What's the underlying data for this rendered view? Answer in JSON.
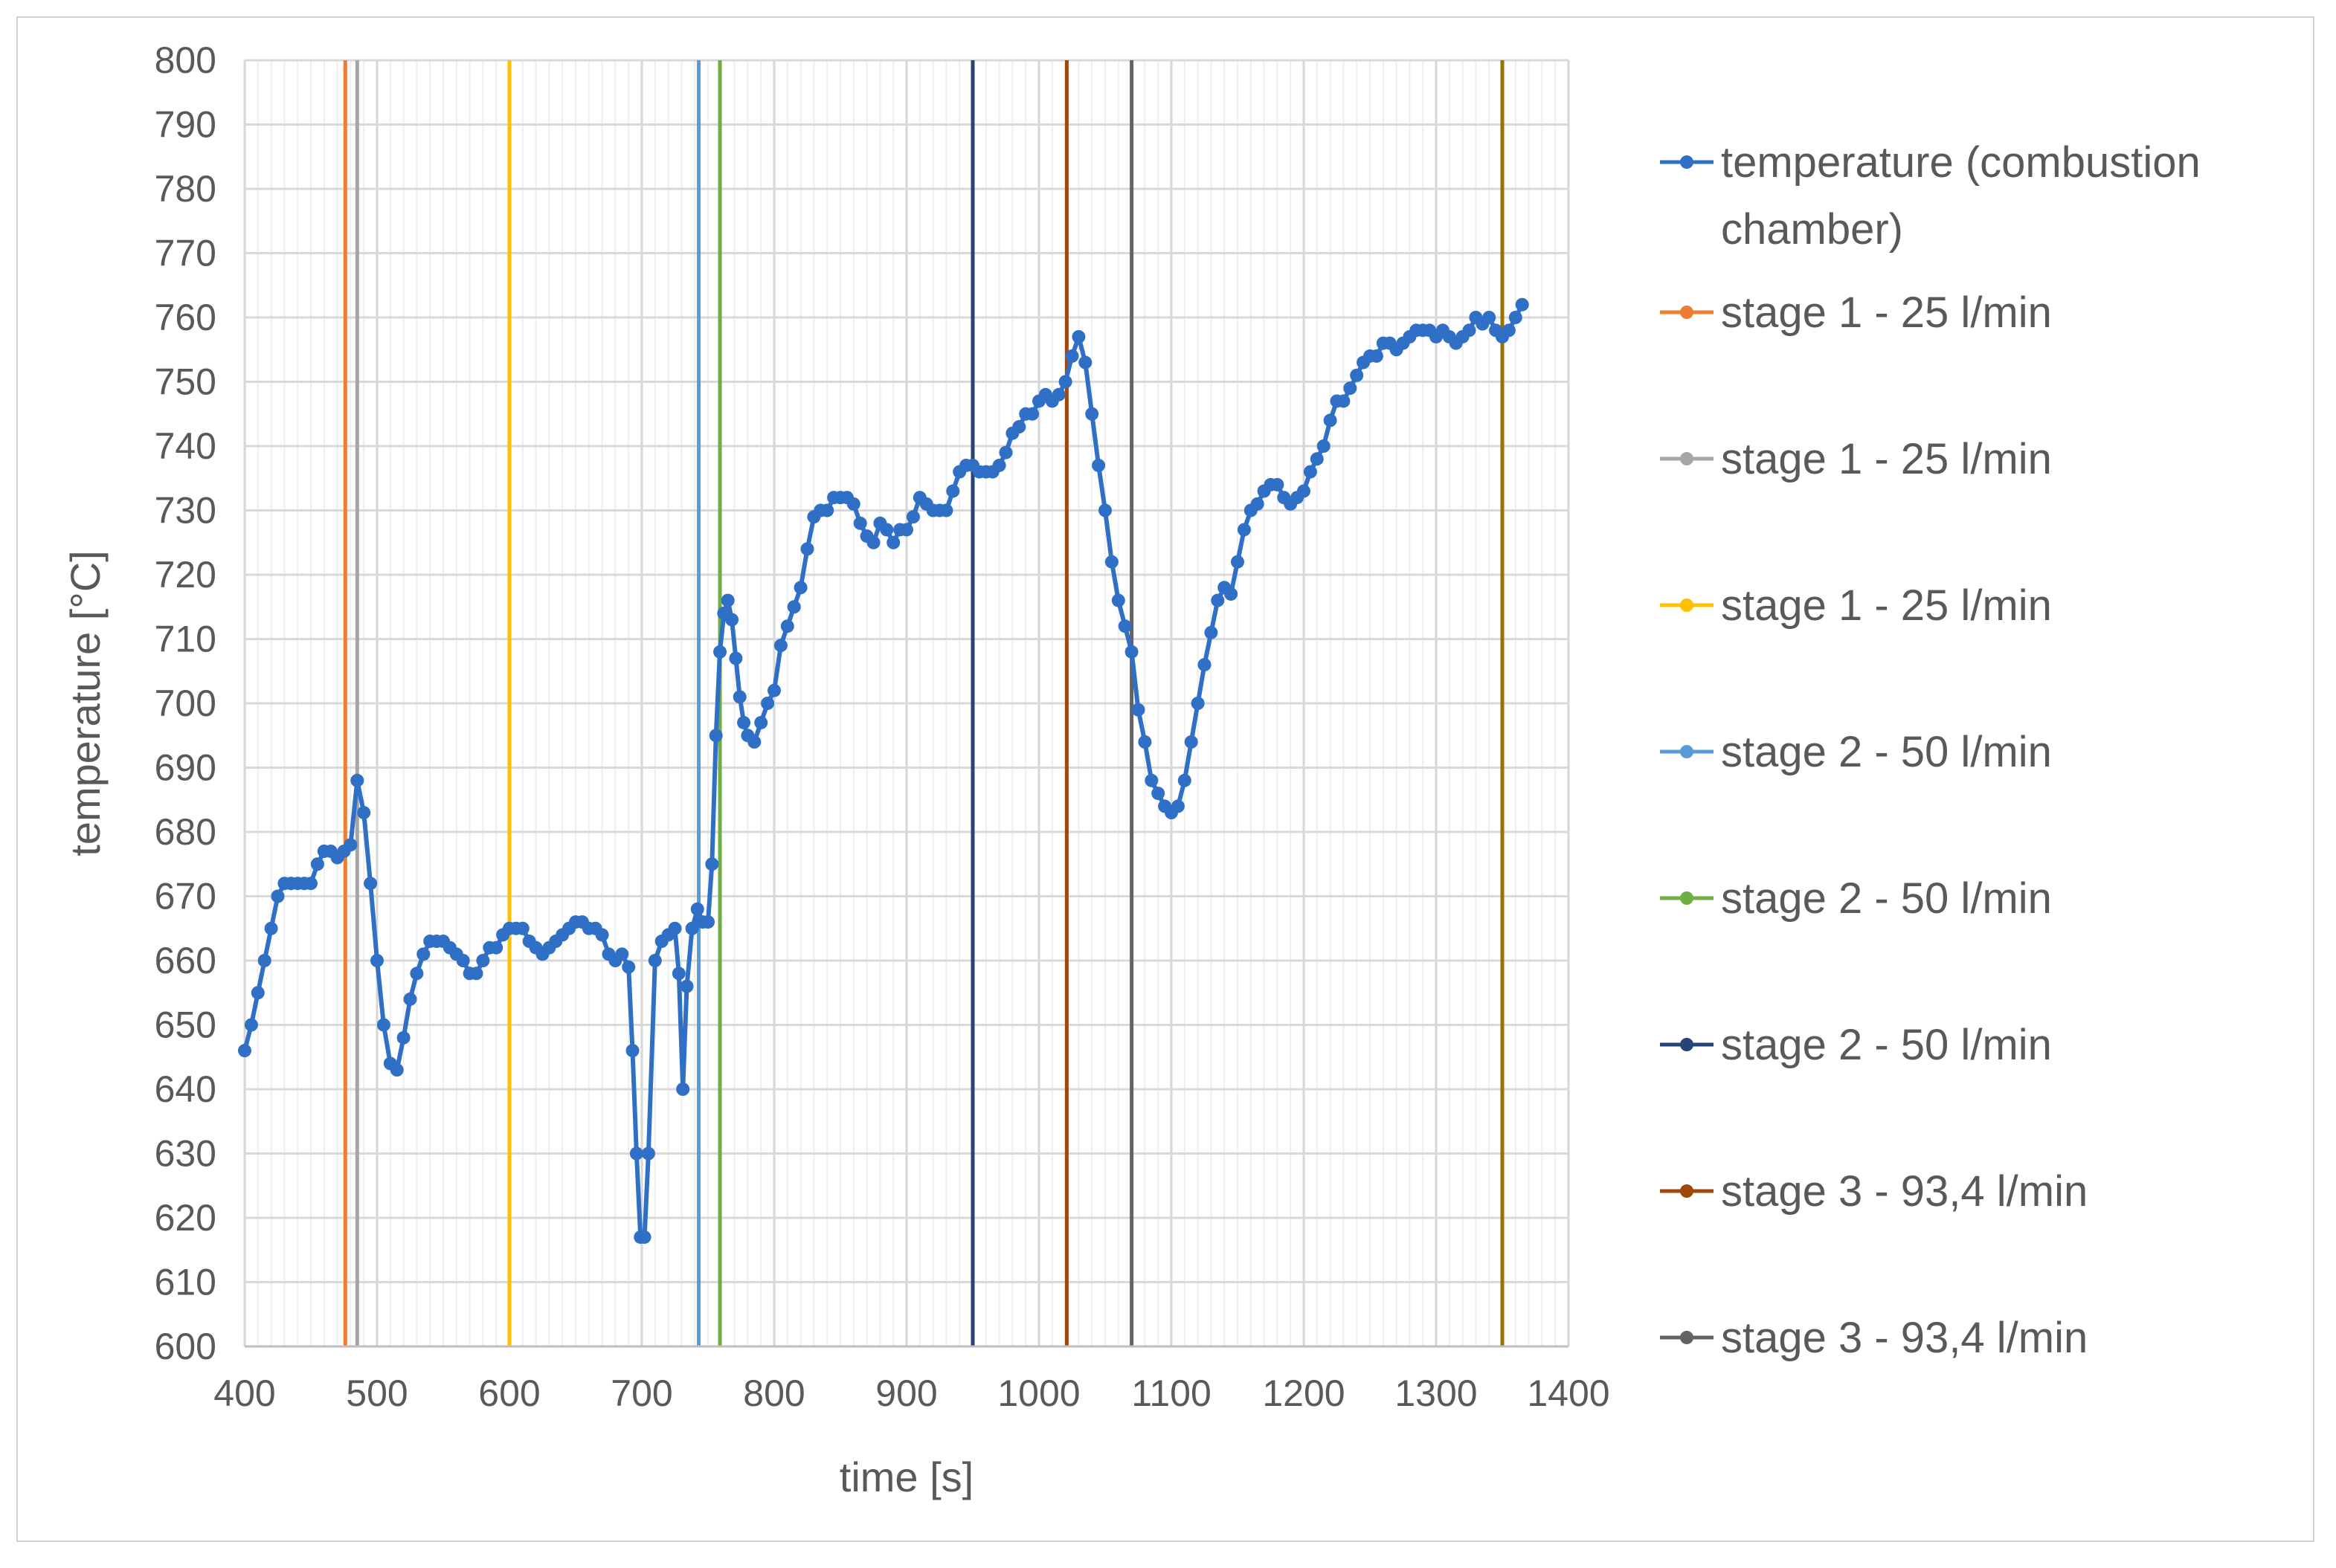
{
  "chart_data": {
    "type": "line",
    "title": "",
    "xlabel": "time [s]",
    "ylabel": "temperature [°C]",
    "xlim": [
      400,
      1400
    ],
    "ylim": [
      600,
      800
    ],
    "x_ticks": [
      400,
      500,
      600,
      700,
      800,
      900,
      1000,
      1100,
      1200,
      1300,
      1400
    ],
    "y_ticks": [
      600,
      610,
      620,
      630,
      640,
      650,
      660,
      670,
      680,
      690,
      700,
      710,
      720,
      730,
      740,
      750,
      760,
      770,
      780,
      790,
      800
    ],
    "grid": "on",
    "legend_position": "right",
    "series": [
      {
        "name": "temperature (combustion chamber)",
        "color": "#2f6fc6",
        "marker": "circle",
        "points": [
          [
            400,
            646
          ],
          [
            405,
            650
          ],
          [
            410,
            655
          ],
          [
            415,
            660
          ],
          [
            420,
            665
          ],
          [
            425,
            670
          ],
          [
            430,
            672
          ],
          [
            435,
            672
          ],
          [
            440,
            672
          ],
          [
            445,
            672
          ],
          [
            450,
            672
          ],
          [
            455,
            675
          ],
          [
            460,
            677
          ],
          [
            465,
            677
          ],
          [
            470,
            676
          ],
          [
            475,
            677
          ],
          [
            480,
            678
          ],
          [
            485,
            688
          ],
          [
            490,
            683
          ],
          [
            495,
            672
          ],
          [
            500,
            660
          ],
          [
            505,
            650
          ],
          [
            510,
            644
          ],
          [
            515,
            643
          ],
          [
            520,
            648
          ],
          [
            525,
            654
          ],
          [
            530,
            658
          ],
          [
            535,
            661
          ],
          [
            540,
            663
          ],
          [
            545,
            663
          ],
          [
            550,
            663
          ],
          [
            555,
            662
          ],
          [
            560,
            661
          ],
          [
            565,
            660
          ],
          [
            570,
            658
          ],
          [
            575,
            658
          ],
          [
            580,
            660
          ],
          [
            585,
            662
          ],
          [
            590,
            662
          ],
          [
            595,
            664
          ],
          [
            600,
            665
          ],
          [
            605,
            665
          ],
          [
            610,
            665
          ],
          [
            615,
            663
          ],
          [
            620,
            662
          ],
          [
            625,
            661
          ],
          [
            630,
            662
          ],
          [
            635,
            663
          ],
          [
            640,
            664
          ],
          [
            645,
            665
          ],
          [
            650,
            666
          ],
          [
            655,
            666
          ],
          [
            660,
            665
          ],
          [
            665,
            665
          ],
          [
            670,
            664
          ],
          [
            675,
            661
          ],
          [
            680,
            660
          ],
          [
            685,
            661
          ],
          [
            690,
            659
          ],
          [
            693,
            646
          ],
          [
            696,
            630
          ],
          [
            699,
            617
          ],
          [
            702,
            617
          ],
          [
            705,
            630
          ],
          [
            710,
            660
          ],
          [
            715,
            663
          ],
          [
            720,
            664
          ],
          [
            725,
            665
          ],
          [
            728,
            658
          ],
          [
            731,
            640
          ],
          [
            734,
            656
          ],
          [
            738,
            665
          ],
          [
            742,
            668
          ],
          [
            746,
            666
          ],
          [
            750,
            666
          ],
          [
            753,
            675
          ],
          [
            756,
            695
          ],
          [
            759,
            708
          ],
          [
            762,
            714
          ],
          [
            765,
            716
          ],
          [
            768,
            713
          ],
          [
            771,
            707
          ],
          [
            774,
            701
          ],
          [
            777,
            697
          ],
          [
            780,
            695
          ],
          [
            785,
            694
          ],
          [
            790,
            697
          ],
          [
            795,
            700
          ],
          [
            800,
            702
          ],
          [
            805,
            709
          ],
          [
            810,
            712
          ],
          [
            815,
            715
          ],
          [
            820,
            718
          ],
          [
            825,
            724
          ],
          [
            830,
            729
          ],
          [
            835,
            730
          ],
          [
            840,
            730
          ],
          [
            845,
            732
          ],
          [
            850,
            732
          ],
          [
            855,
            732
          ],
          [
            860,
            731
          ],
          [
            865,
            728
          ],
          [
            870,
            726
          ],
          [
            875,
            725
          ],
          [
            880,
            728
          ],
          [
            885,
            727
          ],
          [
            890,
            725
          ],
          [
            895,
            727
          ],
          [
            900,
            727
          ],
          [
            905,
            729
          ],
          [
            910,
            732
          ],
          [
            915,
            731
          ],
          [
            920,
            730
          ],
          [
            925,
            730
          ],
          [
            930,
            730
          ],
          [
            935,
            733
          ],
          [
            940,
            736
          ],
          [
            945,
            737
          ],
          [
            950,
            737
          ],
          [
            955,
            736
          ],
          [
            960,
            736
          ],
          [
            965,
            736
          ],
          [
            970,
            737
          ],
          [
            975,
            739
          ],
          [
            980,
            742
          ],
          [
            985,
            743
          ],
          [
            990,
            745
          ],
          [
            995,
            745
          ],
          [
            1000,
            747
          ],
          [
            1005,
            748
          ],
          [
            1010,
            747
          ],
          [
            1015,
            748
          ],
          [
            1020,
            750
          ],
          [
            1025,
            754
          ],
          [
            1030,
            757
          ],
          [
            1035,
            753
          ],
          [
            1040,
            745
          ],
          [
            1045,
            737
          ],
          [
            1050,
            730
          ],
          [
            1055,
            722
          ],
          [
            1060,
            716
          ],
          [
            1065,
            712
          ],
          [
            1070,
            708
          ],
          [
            1075,
            699
          ],
          [
            1080,
            694
          ],
          [
            1085,
            688
          ],
          [
            1090,
            686
          ],
          [
            1095,
            684
          ],
          [
            1100,
            683
          ],
          [
            1105,
            684
          ],
          [
            1110,
            688
          ],
          [
            1115,
            694
          ],
          [
            1120,
            700
          ],
          [
            1125,
            706
          ],
          [
            1130,
            711
          ],
          [
            1135,
            716
          ],
          [
            1140,
            718
          ],
          [
            1145,
            717
          ],
          [
            1150,
            722
          ],
          [
            1155,
            727
          ],
          [
            1160,
            730
          ],
          [
            1165,
            731
          ],
          [
            1170,
            733
          ],
          [
            1175,
            734
          ],
          [
            1180,
            734
          ],
          [
            1185,
            732
          ],
          [
            1190,
            731
          ],
          [
            1195,
            732
          ],
          [
            1200,
            733
          ],
          [
            1205,
            736
          ],
          [
            1210,
            738
          ],
          [
            1215,
            740
          ],
          [
            1220,
            744
          ],
          [
            1225,
            747
          ],
          [
            1230,
            747
          ],
          [
            1235,
            749
          ],
          [
            1240,
            751
          ],
          [
            1245,
            753
          ],
          [
            1250,
            754
          ],
          [
            1255,
            754
          ],
          [
            1260,
            756
          ],
          [
            1265,
            756
          ],
          [
            1270,
            755
          ],
          [
            1275,
            756
          ],
          [
            1280,
            757
          ],
          [
            1285,
            758
          ],
          [
            1290,
            758
          ],
          [
            1295,
            758
          ],
          [
            1300,
            757
          ],
          [
            1305,
            758
          ],
          [
            1310,
            757
          ],
          [
            1315,
            756
          ],
          [
            1320,
            757
          ],
          [
            1325,
            758
          ],
          [
            1330,
            760
          ],
          [
            1335,
            759
          ],
          [
            1340,
            760
          ],
          [
            1345,
            758
          ],
          [
            1350,
            757
          ],
          [
            1355,
            758
          ],
          [
            1360,
            760
          ],
          [
            1365,
            762
          ]
        ]
      },
      {
        "name": "stage 1 - 25 l/min",
        "color": "#ed7d31",
        "x": 476
      },
      {
        "name": "stage 1 - 25 l/min",
        "color": "#a5a5a5",
        "x": 485
      },
      {
        "name": "stage 1 - 25 l/min",
        "color": "#ffc000",
        "x": 600
      },
      {
        "name": "stage 2 - 50 l/min",
        "color": "#5b9bd5",
        "x": 743
      },
      {
        "name": "stage 2 - 50 l/min",
        "color": "#70ad47",
        "x": 759
      },
      {
        "name": "stage 2 - 50 l/min",
        "color": "#264478",
        "x": 950
      },
      {
        "name": "stage 3 - 93,4 l/min",
        "color": "#9e480e",
        "x": 1021
      },
      {
        "name": "stage 3 - 93,4 l/min",
        "color": "#636363",
        "x": 1070
      },
      {
        "name": "",
        "color": "#997300",
        "x": 1350
      }
    ]
  }
}
